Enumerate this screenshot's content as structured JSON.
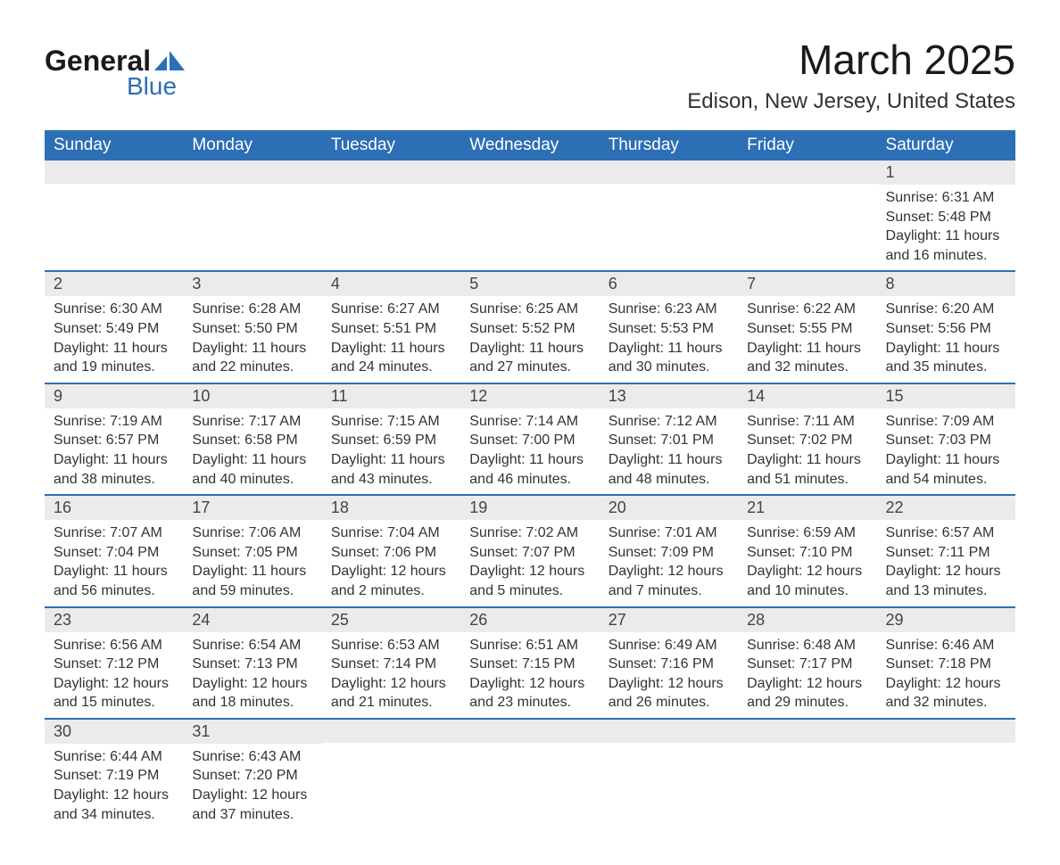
{
  "logo": {
    "text1": "General",
    "text2": "Blue",
    "shape_color": "#2d6fb5"
  },
  "title": "March 2025",
  "location": "Edison, New Jersey, United States",
  "colors": {
    "header_bg": "#2d6fb5",
    "header_text": "#ffffff",
    "daynum_bg": "#ebebeb",
    "row_border": "#2d6fb5",
    "text": "#333333"
  },
  "day_headers": [
    "Sunday",
    "Monday",
    "Tuesday",
    "Wednesday",
    "Thursday",
    "Friday",
    "Saturday"
  ],
  "weeks": [
    [
      {
        "day": "",
        "sunrise": "",
        "sunset": "",
        "daylight": ""
      },
      {
        "day": "",
        "sunrise": "",
        "sunset": "",
        "daylight": ""
      },
      {
        "day": "",
        "sunrise": "",
        "sunset": "",
        "daylight": ""
      },
      {
        "day": "",
        "sunrise": "",
        "sunset": "",
        "daylight": ""
      },
      {
        "day": "",
        "sunrise": "",
        "sunset": "",
        "daylight": ""
      },
      {
        "day": "",
        "sunrise": "",
        "sunset": "",
        "daylight": ""
      },
      {
        "day": "1",
        "sunrise": "Sunrise: 6:31 AM",
        "sunset": "Sunset: 5:48 PM",
        "daylight": "Daylight: 11 hours and 16 minutes."
      }
    ],
    [
      {
        "day": "2",
        "sunrise": "Sunrise: 6:30 AM",
        "sunset": "Sunset: 5:49 PM",
        "daylight": "Daylight: 11 hours and 19 minutes."
      },
      {
        "day": "3",
        "sunrise": "Sunrise: 6:28 AM",
        "sunset": "Sunset: 5:50 PM",
        "daylight": "Daylight: 11 hours and 22 minutes."
      },
      {
        "day": "4",
        "sunrise": "Sunrise: 6:27 AM",
        "sunset": "Sunset: 5:51 PM",
        "daylight": "Daylight: 11 hours and 24 minutes."
      },
      {
        "day": "5",
        "sunrise": "Sunrise: 6:25 AM",
        "sunset": "Sunset: 5:52 PM",
        "daylight": "Daylight: 11 hours and 27 minutes."
      },
      {
        "day": "6",
        "sunrise": "Sunrise: 6:23 AM",
        "sunset": "Sunset: 5:53 PM",
        "daylight": "Daylight: 11 hours and 30 minutes."
      },
      {
        "day": "7",
        "sunrise": "Sunrise: 6:22 AM",
        "sunset": "Sunset: 5:55 PM",
        "daylight": "Daylight: 11 hours and 32 minutes."
      },
      {
        "day": "8",
        "sunrise": "Sunrise: 6:20 AM",
        "sunset": "Sunset: 5:56 PM",
        "daylight": "Daylight: 11 hours and 35 minutes."
      }
    ],
    [
      {
        "day": "9",
        "sunrise": "Sunrise: 7:19 AM",
        "sunset": "Sunset: 6:57 PM",
        "daylight": "Daylight: 11 hours and 38 minutes."
      },
      {
        "day": "10",
        "sunrise": "Sunrise: 7:17 AM",
        "sunset": "Sunset: 6:58 PM",
        "daylight": "Daylight: 11 hours and 40 minutes."
      },
      {
        "day": "11",
        "sunrise": "Sunrise: 7:15 AM",
        "sunset": "Sunset: 6:59 PM",
        "daylight": "Daylight: 11 hours and 43 minutes."
      },
      {
        "day": "12",
        "sunrise": "Sunrise: 7:14 AM",
        "sunset": "Sunset: 7:00 PM",
        "daylight": "Daylight: 11 hours and 46 minutes."
      },
      {
        "day": "13",
        "sunrise": "Sunrise: 7:12 AM",
        "sunset": "Sunset: 7:01 PM",
        "daylight": "Daylight: 11 hours and 48 minutes."
      },
      {
        "day": "14",
        "sunrise": "Sunrise: 7:11 AM",
        "sunset": "Sunset: 7:02 PM",
        "daylight": "Daylight: 11 hours and 51 minutes."
      },
      {
        "day": "15",
        "sunrise": "Sunrise: 7:09 AM",
        "sunset": "Sunset: 7:03 PM",
        "daylight": "Daylight: 11 hours and 54 minutes."
      }
    ],
    [
      {
        "day": "16",
        "sunrise": "Sunrise: 7:07 AM",
        "sunset": "Sunset: 7:04 PM",
        "daylight": "Daylight: 11 hours and 56 minutes."
      },
      {
        "day": "17",
        "sunrise": "Sunrise: 7:06 AM",
        "sunset": "Sunset: 7:05 PM",
        "daylight": "Daylight: 11 hours and 59 minutes."
      },
      {
        "day": "18",
        "sunrise": "Sunrise: 7:04 AM",
        "sunset": "Sunset: 7:06 PM",
        "daylight": "Daylight: 12 hours and 2 minutes."
      },
      {
        "day": "19",
        "sunrise": "Sunrise: 7:02 AM",
        "sunset": "Sunset: 7:07 PM",
        "daylight": "Daylight: 12 hours and 5 minutes."
      },
      {
        "day": "20",
        "sunrise": "Sunrise: 7:01 AM",
        "sunset": "Sunset: 7:09 PM",
        "daylight": "Daylight: 12 hours and 7 minutes."
      },
      {
        "day": "21",
        "sunrise": "Sunrise: 6:59 AM",
        "sunset": "Sunset: 7:10 PM",
        "daylight": "Daylight: 12 hours and 10 minutes."
      },
      {
        "day": "22",
        "sunrise": "Sunrise: 6:57 AM",
        "sunset": "Sunset: 7:11 PM",
        "daylight": "Daylight: 12 hours and 13 minutes."
      }
    ],
    [
      {
        "day": "23",
        "sunrise": "Sunrise: 6:56 AM",
        "sunset": "Sunset: 7:12 PM",
        "daylight": "Daylight: 12 hours and 15 minutes."
      },
      {
        "day": "24",
        "sunrise": "Sunrise: 6:54 AM",
        "sunset": "Sunset: 7:13 PM",
        "daylight": "Daylight: 12 hours and 18 minutes."
      },
      {
        "day": "25",
        "sunrise": "Sunrise: 6:53 AM",
        "sunset": "Sunset: 7:14 PM",
        "daylight": "Daylight: 12 hours and 21 minutes."
      },
      {
        "day": "26",
        "sunrise": "Sunrise: 6:51 AM",
        "sunset": "Sunset: 7:15 PM",
        "daylight": "Daylight: 12 hours and 23 minutes."
      },
      {
        "day": "27",
        "sunrise": "Sunrise: 6:49 AM",
        "sunset": "Sunset: 7:16 PM",
        "daylight": "Daylight: 12 hours and 26 minutes."
      },
      {
        "day": "28",
        "sunrise": "Sunrise: 6:48 AM",
        "sunset": "Sunset: 7:17 PM",
        "daylight": "Daylight: 12 hours and 29 minutes."
      },
      {
        "day": "29",
        "sunrise": "Sunrise: 6:46 AM",
        "sunset": "Sunset: 7:18 PM",
        "daylight": "Daylight: 12 hours and 32 minutes."
      }
    ],
    [
      {
        "day": "30",
        "sunrise": "Sunrise: 6:44 AM",
        "sunset": "Sunset: 7:19 PM",
        "daylight": "Daylight: 12 hours and 34 minutes."
      },
      {
        "day": "31",
        "sunrise": "Sunrise: 6:43 AM",
        "sunset": "Sunset: 7:20 PM",
        "daylight": "Daylight: 12 hours and 37 minutes."
      },
      {
        "day": "",
        "sunrise": "",
        "sunset": "",
        "daylight": ""
      },
      {
        "day": "",
        "sunrise": "",
        "sunset": "",
        "daylight": ""
      },
      {
        "day": "",
        "sunrise": "",
        "sunset": "",
        "daylight": ""
      },
      {
        "day": "",
        "sunrise": "",
        "sunset": "",
        "daylight": ""
      },
      {
        "day": "",
        "sunrise": "",
        "sunset": "",
        "daylight": ""
      }
    ]
  ]
}
